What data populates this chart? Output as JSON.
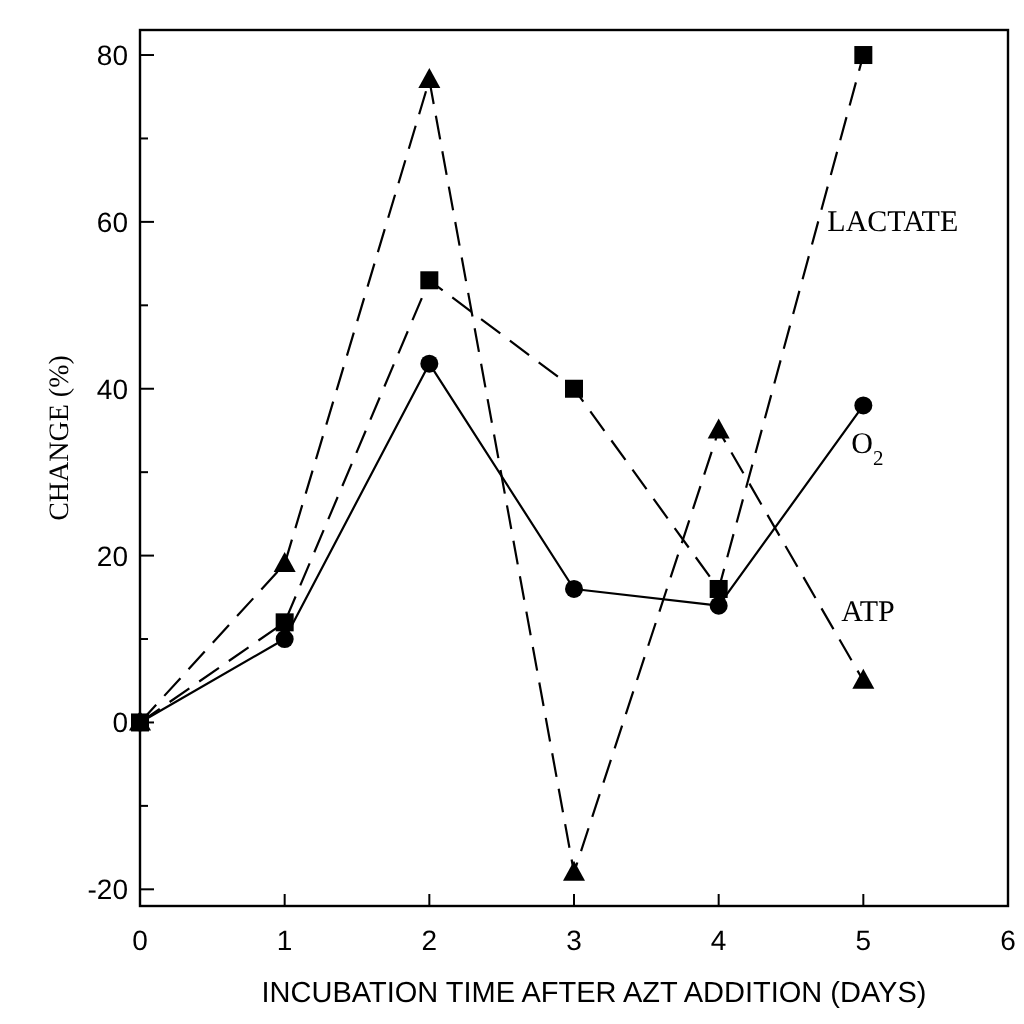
{
  "chart_data": {
    "type": "line",
    "xlabel": "INCUBATION TIME AFTER AZT ADDITION (DAYS)",
    "ylabel": "CHANGE (%)",
    "x": [
      0,
      1,
      2,
      3,
      4,
      5
    ],
    "series": [
      {
        "name": "O$_{2}$",
        "color": "#000000",
        "marker": "circle",
        "line_style": "solid",
        "values": [
          0,
          10,
          43,
          16,
          14,
          38
        ]
      },
      {
        "name": "LACTATE",
        "color": "#000000",
        "marker": "square",
        "line_style": "dashed",
        "values": [
          0,
          12,
          53,
          40,
          16,
          80
        ]
      },
      {
        "name": "ATP",
        "color": "#000000",
        "marker": "triangle",
        "line_style": "dashed",
        "values": [
          0,
          19,
          77,
          -18,
          35,
          5
        ]
      }
    ],
    "xlim": [
      0,
      6
    ],
    "xticks": [
      0,
      1,
      2,
      3,
      4,
      5,
      6
    ],
    "ylim": [
      -22,
      83
    ],
    "yticks": [
      -20,
      {
        "value": -10,
        "label": null
      },
      0,
      {
        "value": 10,
        "label": null
      },
      20,
      {
        "value": 30,
        "label": null
      },
      40,
      {
        "value": 50,
        "label": null
      },
      60,
      {
        "value": 70,
        "label": null
      },
      80
    ],
    "grid": false
  }
}
